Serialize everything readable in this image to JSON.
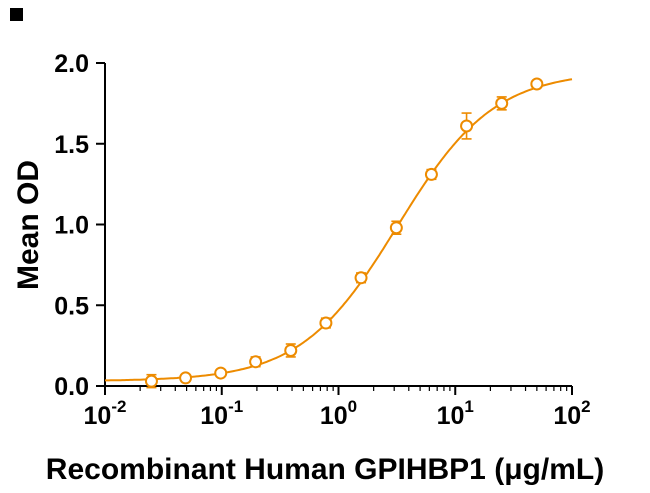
{
  "chart_data": {
    "type": "scatter",
    "title": "",
    "xlabel": "Recombinant Human GPIHBP1 (μg/mL)",
    "ylabel": "Mean OD",
    "x_scale": "log",
    "xlim_exp": [
      -2,
      2
    ],
    "ylim": [
      0,
      2
    ],
    "yticks": [
      0,
      0.5,
      1,
      1.5,
      2
    ],
    "xtick_exponents": [
      -2,
      -1,
      0,
      1,
      2
    ],
    "grid": "off",
    "legend": "none",
    "marker": "open-circle",
    "color": "#ED8B00",
    "axis_color": "#000000",
    "series": [
      {
        "name": "Mean OD",
        "x": [
          0.025,
          0.049,
          0.098,
          0.195,
          0.39,
          0.78,
          1.56,
          3.13,
          6.25,
          12.5,
          25,
          50
        ],
        "y": [
          0.03,
          0.05,
          0.08,
          0.15,
          0.22,
          0.39,
          0.67,
          0.98,
          1.31,
          1.61,
          1.75,
          1.87
        ],
        "yerr": [
          0.04,
          0.02,
          0.02,
          0.03,
          0.04,
          0.03,
          0.03,
          0.04,
          0.03,
          0.08,
          0.04,
          0.02
        ]
      }
    ],
    "fit": {
      "type": "4pl",
      "bottom": 0.03,
      "top": 1.95,
      "ec50": 3.2,
      "hill": 1.05
    }
  }
}
